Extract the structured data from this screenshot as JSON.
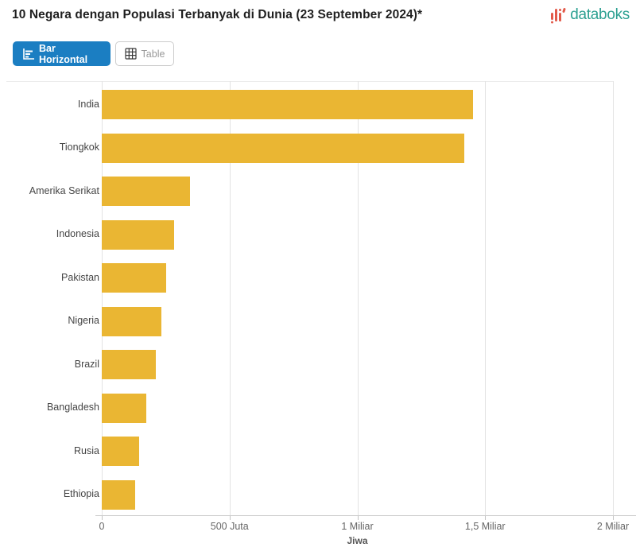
{
  "header": {
    "title": "10 Negara dengan Populasi Terbanyak di Dunia (23 September 2024)*",
    "logo_text": "databoks"
  },
  "toolbar": {
    "bar_horizontal_label": "Bar Horizontal",
    "table_label": "Table"
  },
  "chart_data": {
    "type": "bar",
    "orientation": "horizontal",
    "title": "10 Negara dengan Populasi Terbanyak di Dunia (23 September 2024)*",
    "categories": [
      "India",
      "Tiongkok",
      "Amerika Serikat",
      "Indonesia",
      "Pakistan",
      "Nigeria",
      "Brazil",
      "Bangladesh",
      "Rusia",
      "Ethiopia"
    ],
    "values": [
      1452000000,
      1419000000,
      345400000,
      283500000,
      251300000,
      232700000,
      212000000,
      173600000,
      144800000,
      132100000
    ],
    "xlabel": "Jiwa",
    "ylabel": "",
    "xlim": [
      0,
      2000000000
    ],
    "x_ticks": [
      {
        "value": 0,
        "label": "0"
      },
      {
        "value": 500000000,
        "label": "500 Juta"
      },
      {
        "value": 1000000000,
        "label": "1 Miliar"
      },
      {
        "value": 1500000000,
        "label": "1,5 Miliar"
      },
      {
        "value": 2000000000,
        "label": "2 Miliar"
      }
    ],
    "grid": true,
    "legend": "none",
    "bar_color": "#eab633"
  },
  "colors": {
    "accent_blue": "#1b7ec2",
    "logo_teal": "#2ea192",
    "logo_red": "#e25a4a",
    "bar_gold": "#eab633",
    "gridline": "#e3e3e3",
    "axis_line": "#cccccc"
  }
}
